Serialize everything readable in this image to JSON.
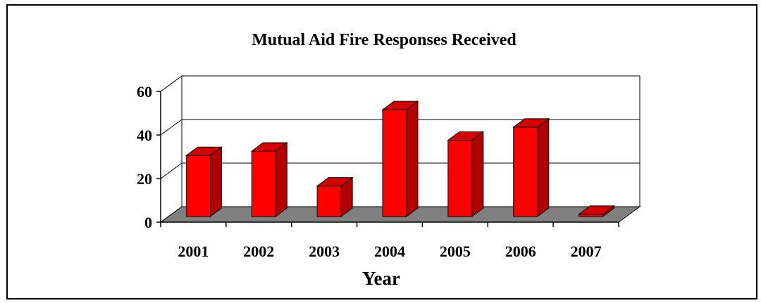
{
  "chart_data": {
    "type": "bar",
    "title": "Mutual Aid Fire Responses Received",
    "xlabel": "Year",
    "ylabel": "",
    "categories": [
      "2001",
      "2002",
      "2003",
      "2004",
      "2005",
      "2006",
      "2007"
    ],
    "values": [
      28,
      30,
      14,
      49,
      35,
      41,
      1
    ],
    "ylim": [
      0,
      60
    ],
    "yticks": [
      "0",
      "20",
      "40",
      "60"
    ],
    "grid": true,
    "legend": "none",
    "colors": {
      "bar_front": "#ff0000",
      "bar_side": "#b00000",
      "bar_top": "#d40000",
      "floor": "#808080",
      "wall": "#ffffff"
    }
  }
}
